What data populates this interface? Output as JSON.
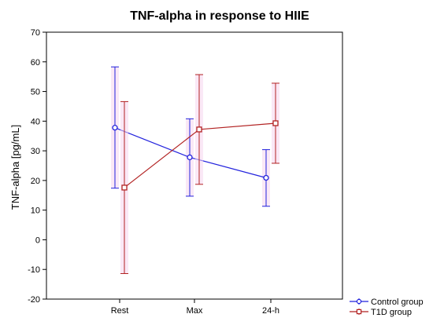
{
  "chart_data": {
    "type": "line",
    "title": "TNF-alpha in response to HIIE",
    "xlabel": "",
    "ylabel": "TNF-alpha [pg/mL]",
    "categories": [
      "Rest",
      "Max",
      "24-h"
    ],
    "ylim": [
      -20,
      70
    ],
    "yticks": [
      -20,
      -10,
      0,
      10,
      20,
      30,
      40,
      50,
      60,
      70
    ],
    "grid": false,
    "legend_position": "bottom-right",
    "series": [
      {
        "name": "Control group",
        "color": "#2222dd",
        "marker": "circle",
        "values": [
          37.8,
          27.8,
          20.9
        ],
        "error_upper": [
          58.3,
          40.8,
          30.4
        ],
        "error_lower": [
          17.4,
          14.7,
          11.3
        ]
      },
      {
        "name": "T1D group",
        "color": "#b22222",
        "marker": "square",
        "values": [
          17.6,
          37.2,
          39.3
        ],
        "error_upper": [
          46.6,
          55.7,
          52.8
        ],
        "error_lower": [
          -11.4,
          18.7,
          25.8
        ]
      }
    ]
  }
}
